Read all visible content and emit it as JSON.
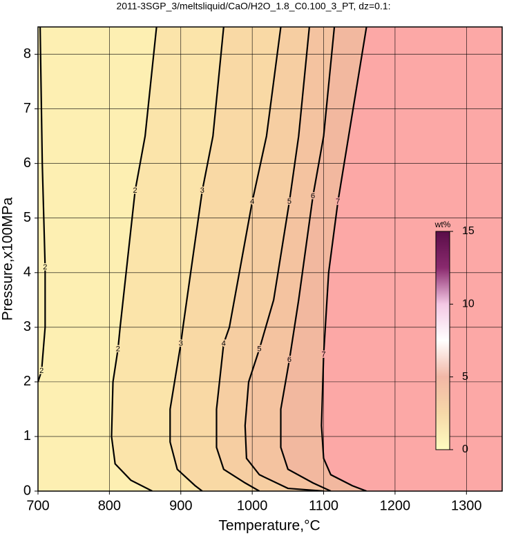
{
  "chart_data": {
    "type": "contour",
    "title": "2011-3SGP_3/meltsliquid/CaO/H2O_1.8_C0.100_3_PT, dz=0.1:",
    "x_label": "Temperature,°C",
    "y_label": "Pressure,x100MPa",
    "xlim": [
      700,
      1350
    ],
    "ylim": [
      0,
      8.5
    ],
    "xticks": [
      700,
      800,
      900,
      1000,
      1100,
      1200,
      1300
    ],
    "yticks": [
      0,
      1,
      2,
      3,
      4,
      5,
      6,
      7,
      8
    ],
    "grid": true,
    "background_color": "#fdefb2",
    "series": [
      {
        "level": 2,
        "color": "#fdefb2",
        "x": [
          703,
          706,
          710,
          710,
          705,
          700
        ],
        "values": [
          8.5,
          6,
          4.1,
          3,
          2.2,
          2.0
        ]
      },
      {
        "level": 2,
        "color": "#fbe4aa",
        "x": [
          866,
          850,
          836,
          815,
          812,
          805,
          803,
          808,
          830,
          860
        ],
        "values": [
          8.5,
          6.5,
          5.5,
          3,
          2.6,
          2,
          1,
          0.5,
          0.2,
          0
        ]
      },
      {
        "level": 3,
        "color": "#f9d9a5",
        "x": [
          960,
          945,
          930,
          903,
          900,
          885,
          885,
          895,
          920,
          930
        ],
        "values": [
          8.5,
          6.5,
          5.5,
          3,
          2.7,
          1.5,
          0.9,
          0.4,
          0.1,
          0
        ]
      },
      {
        "level": 4,
        "color": "#f6cea2",
        "x": [
          1040,
          1020,
          1000,
          968,
          960,
          950,
          950,
          960,
          990,
          1010
        ],
        "values": [
          8.5,
          6.5,
          5.3,
          3,
          2.7,
          1.5,
          0.8,
          0.4,
          0.15,
          0
        ]
      },
      {
        "level": 5,
        "color": "#f4c3a0",
        "x": [
          1080,
          1065,
          1052,
          1030,
          1010,
          995,
          990,
          992,
          1010,
          1050,
          1100
        ],
        "values": [
          8.5,
          6.5,
          5.3,
          3.5,
          2.6,
          2,
          1.2,
          0.6,
          0.3,
          0.05,
          0
        ]
      },
      {
        "level": 6,
        "color": "#f2b89f",
        "x": [
          1115,
          1100,
          1085,
          1065,
          1052,
          1040,
          1040,
          1050,
          1085,
          1110
        ],
        "values": [
          8.5,
          6.5,
          5.4,
          3.5,
          2.4,
          1.5,
          0.8,
          0.4,
          0.15,
          0
        ]
      },
      {
        "level": 7,
        "color": "#fca8a6",
        "x": [
          1160,
          1135,
          1120,
          1107,
          1100,
          1097,
          1100,
          1110,
          1140,
          1160
        ],
        "values": [
          8.5,
          6.5,
          5.3,
          4,
          2.5,
          1.2,
          0.6,
          0.3,
          0.1,
          0
        ]
      }
    ],
    "colorbar": {
      "label": "wt%",
      "lim": [
        0,
        15
      ],
      "ticks": [
        0,
        5,
        10,
        15
      ],
      "colors": [
        "#fefcc0",
        "#f6d8a8",
        "#f2b7a6",
        "#ffffff",
        "#f4c8e4",
        "#8a2a6e",
        "#5a0d48"
      ]
    }
  }
}
